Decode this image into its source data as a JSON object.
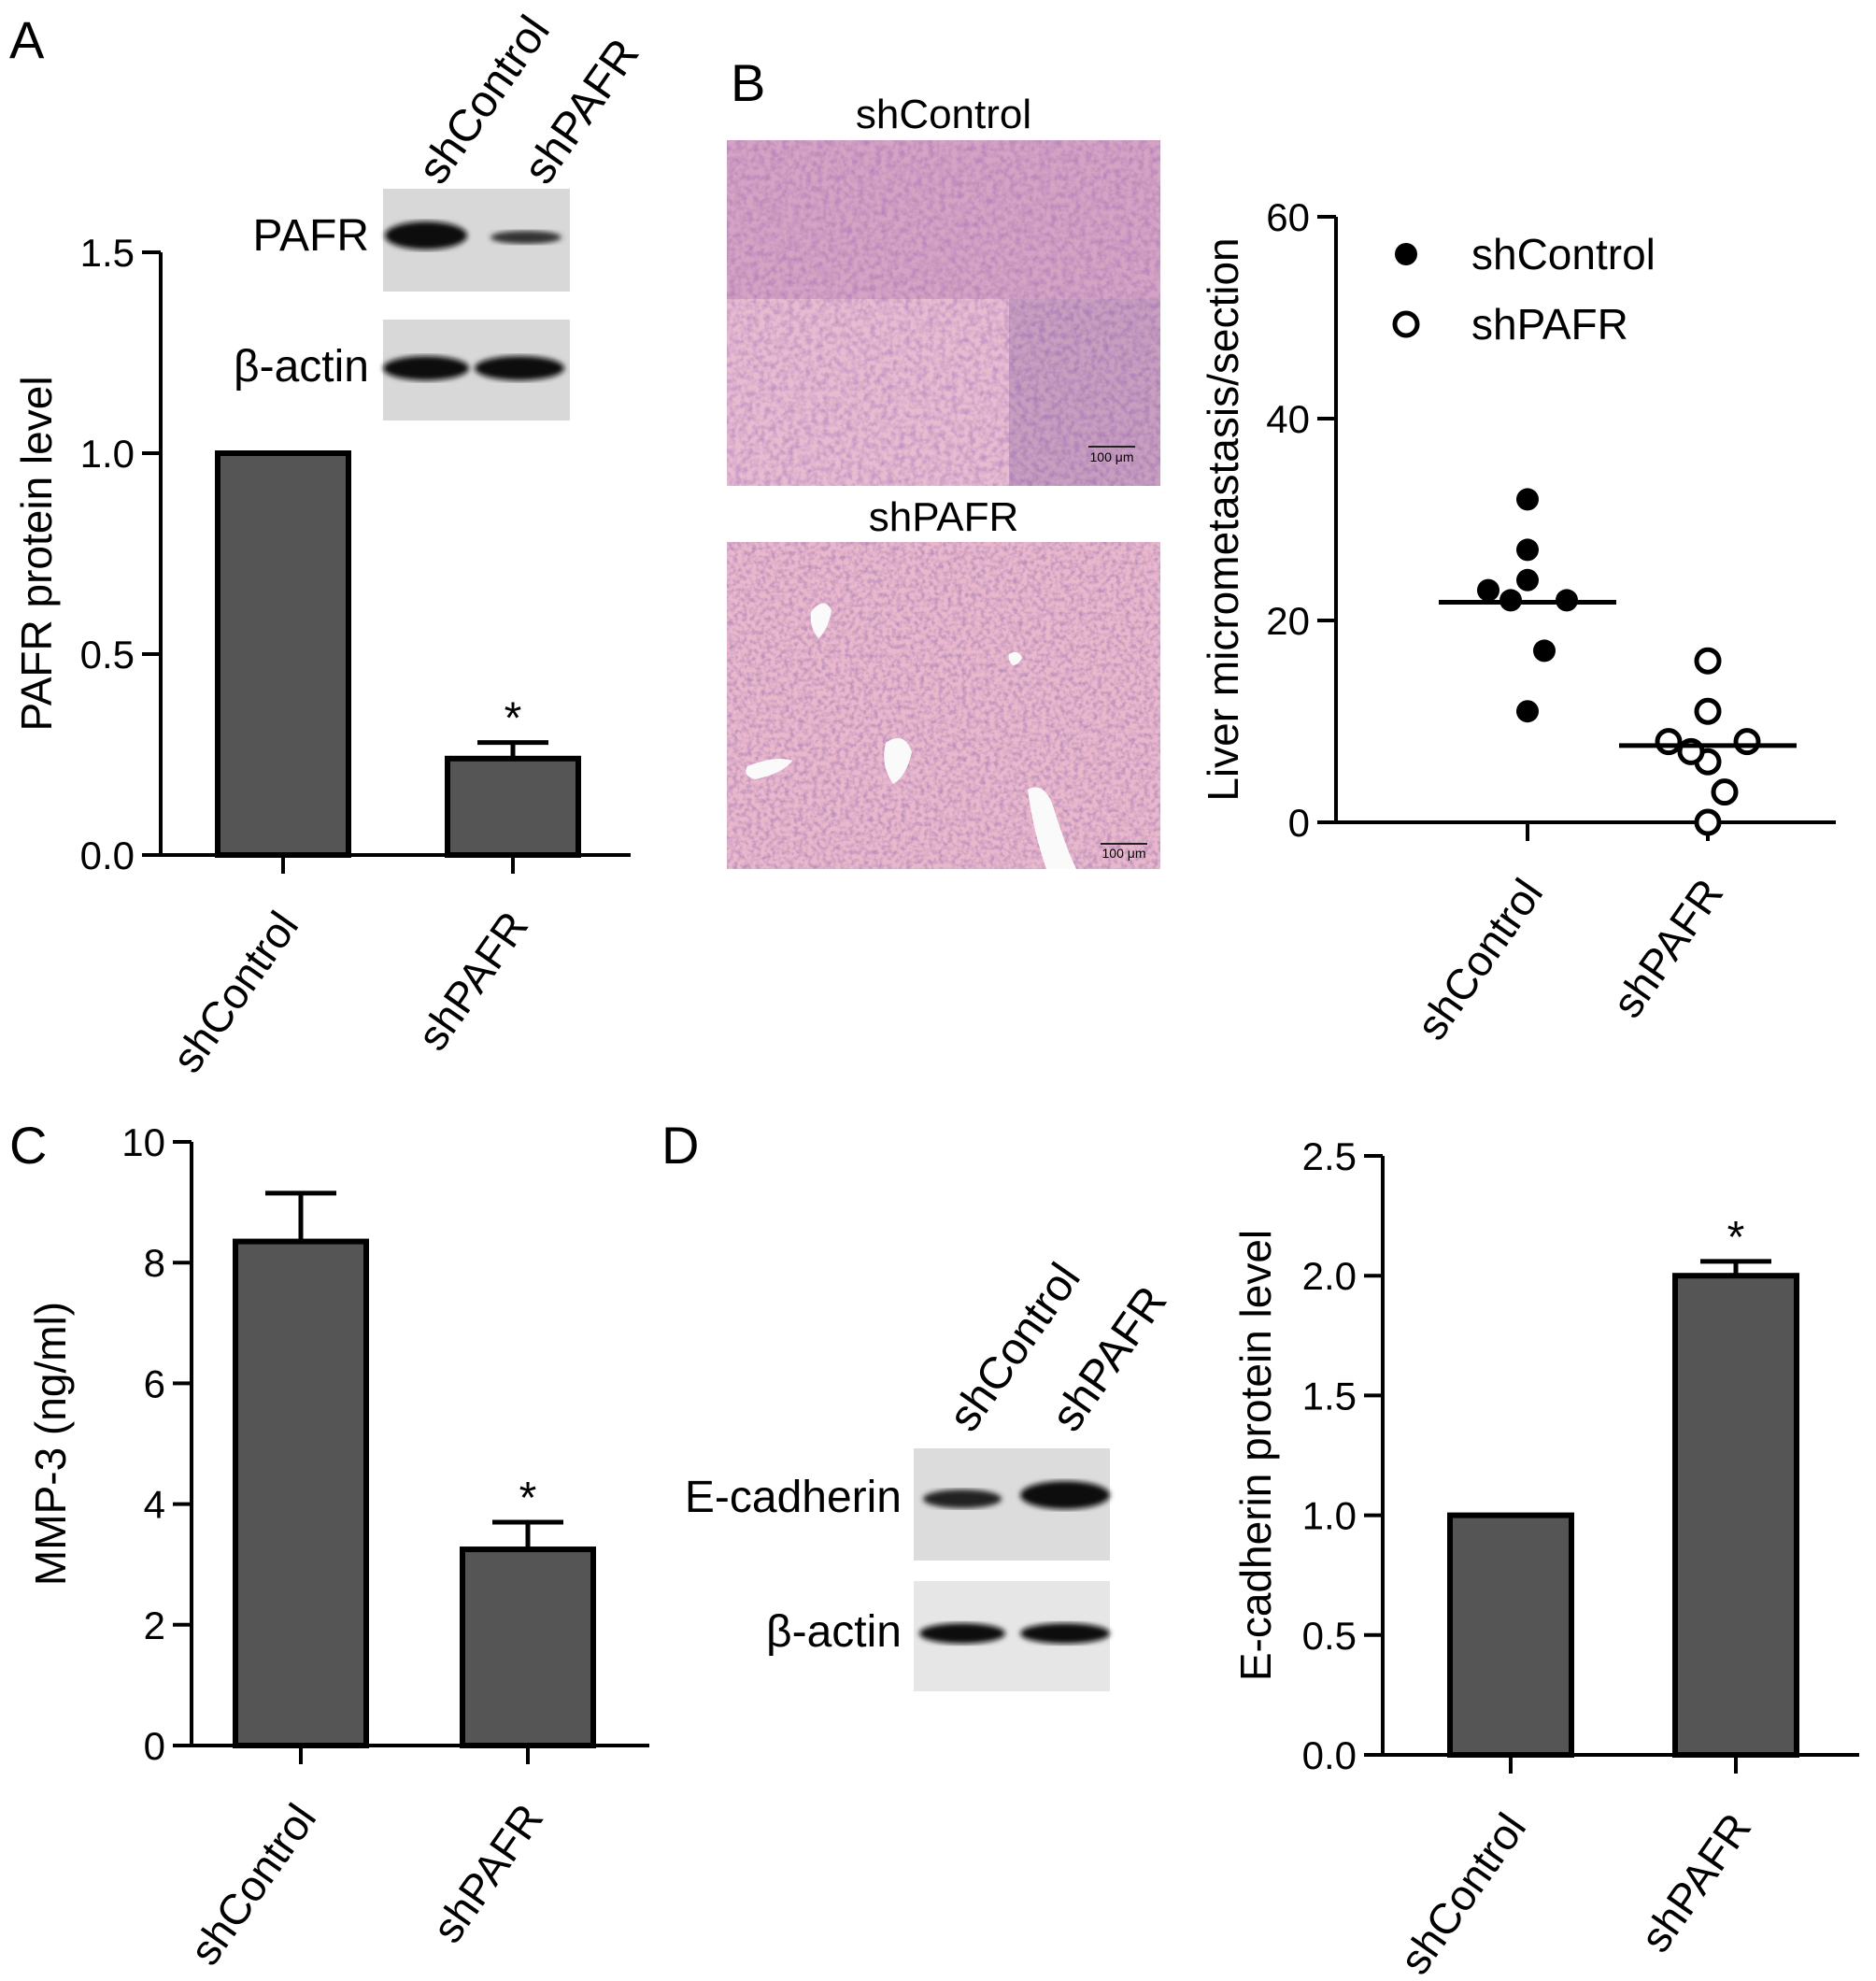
{
  "panels": {
    "A": {
      "letter": "A",
      "blot": {
        "lanes": [
          "shControl",
          "shPAFR"
        ],
        "rows": [
          "PAFR",
          "β-actin"
        ],
        "intensity": [
          [
            1.0,
            0.25
          ],
          [
            1.0,
            1.0
          ]
        ]
      }
    },
    "B": {
      "letter": "B",
      "images": [
        {
          "label": "shControl",
          "scale_bar": "100 μm"
        },
        {
          "label": "shPAFR",
          "scale_bar": "100 μm"
        }
      ]
    },
    "C": {
      "letter": "C"
    },
    "D": {
      "letter": "D",
      "blot": {
        "lanes": [
          "shControl",
          "shPAFR"
        ],
        "rows": [
          "E-cadherin",
          "β-actin"
        ],
        "intensity": [
          [
            0.45,
            1.0
          ],
          [
            1.0,
            1.0
          ]
        ]
      }
    }
  },
  "chart_data": [
    {
      "panel": "A",
      "type": "bar",
      "categories": [
        "shControl",
        "shPAFR"
      ],
      "values": [
        1.0,
        0.24
      ],
      "errors": [
        0,
        0.04
      ],
      "significance": [
        "",
        "*"
      ],
      "ylabel": "PAFR protein level",
      "ylim": [
        0,
        1.5
      ],
      "yticks": [
        "0.0",
        "0.5",
        "1.0",
        "1.5"
      ],
      "bar_color": "#555555"
    },
    {
      "panel": "B",
      "type": "scatter",
      "categories": [
        "shControl",
        "shPAFR"
      ],
      "series": [
        {
          "name": "shControl",
          "marker": "filled-circle",
          "values": [
            32,
            27,
            23,
            24,
            22,
            22,
            17,
            11
          ],
          "median": 21.8
        },
        {
          "name": "shPAFR",
          "marker": "open-circle",
          "values": [
            16,
            11,
            8,
            6,
            8,
            7,
            3,
            0
          ],
          "median": 7.6
        }
      ],
      "ylabel": "Liver micrometastasis/section",
      "ylim": [
        0,
        60
      ],
      "yticks": [
        "0",
        "20",
        "40",
        "60"
      ],
      "legend_position": "top-right"
    },
    {
      "panel": "C",
      "type": "bar",
      "categories": [
        "shControl",
        "shPAFR"
      ],
      "values": [
        8.35,
        3.25
      ],
      "errors": [
        0.8,
        0.45
      ],
      "significance": [
        "",
        "*"
      ],
      "ylabel": "MMP-3 (ng/ml)",
      "ylim": [
        0,
        10
      ],
      "yticks": [
        "0",
        "2",
        "4",
        "6",
        "8",
        "10"
      ],
      "bar_color": "#555555"
    },
    {
      "panel": "D",
      "type": "bar",
      "categories": [
        "shControl",
        "shPAFR"
      ],
      "values": [
        1.0,
        2.0
      ],
      "errors": [
        0,
        0.06
      ],
      "significance": [
        "",
        "*"
      ],
      "ylabel": "E-cadherin protein level",
      "ylim": [
        0,
        2.5
      ],
      "yticks": [
        "0.0",
        "0.5",
        "1.0",
        "1.5",
        "2.0",
        "2.5"
      ],
      "bar_color": "#555555"
    }
  ]
}
